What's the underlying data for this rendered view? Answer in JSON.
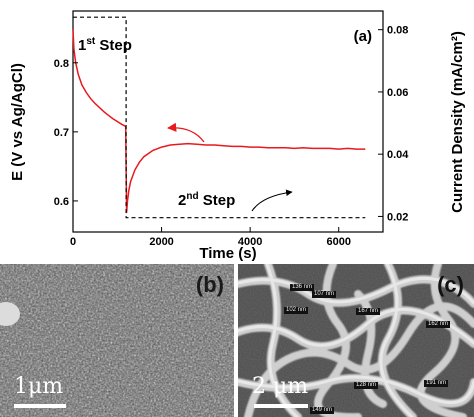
{
  "chart_data": {
    "type": "line",
    "panel_label": "(a)",
    "xlabel": "Time (s)",
    "ylabel_left": "E (V vs Ag/AgCl)",
    "ylabel_right": "Current Density (mA/cm²)",
    "xlim": [
      0,
      7000
    ],
    "ylim_left": [
      0.555,
      0.875
    ],
    "ylim_right": [
      0.015,
      0.086
    ],
    "xticks": [
      "0",
      "2000",
      "4000",
      "6000"
    ],
    "xtick_values": [
      0,
      2000,
      4000,
      6000
    ],
    "yticks_left": [
      "0.6",
      "0.7",
      "0.8"
    ],
    "ytick_values_left": [
      0.6,
      0.7,
      0.8
    ],
    "yticks_right": [
      "0.02",
      "0.04",
      "0.06",
      "0.08"
    ],
    "ytick_values_right": [
      0.02,
      0.04,
      0.06,
      0.08
    ],
    "series": [
      {
        "axis": "left",
        "color": "#e8191f",
        "style": "solid",
        "x": [
          0,
          20,
          60,
          120,
          200,
          300,
          400,
          500,
          600,
          700,
          800,
          900,
          1000,
          1100,
          1190,
          1200,
          1210,
          1230,
          1260,
          1300,
          1400,
          1500,
          1600,
          1800,
          2000,
          2200,
          2400,
          2600,
          2800,
          3000,
          3200,
          3400,
          3600,
          3800,
          4000,
          4200,
          4400,
          4600,
          4800,
          5000,
          5200,
          5400,
          5600,
          5800,
          6000,
          6200,
          6400,
          6600
        ],
        "y": [
          0.848,
          0.82,
          0.8,
          0.783,
          0.768,
          0.757,
          0.748,
          0.741,
          0.735,
          0.729,
          0.724,
          0.719,
          0.715,
          0.711,
          0.708,
          0.65,
          0.583,
          0.6,
          0.615,
          0.628,
          0.645,
          0.656,
          0.664,
          0.673,
          0.678,
          0.681,
          0.682,
          0.683,
          0.682,
          0.681,
          0.681,
          0.68,
          0.679,
          0.679,
          0.678,
          0.678,
          0.677,
          0.677,
          0.677,
          0.676,
          0.677,
          0.676,
          0.676,
          0.676,
          0.675,
          0.676,
          0.675,
          0.675
        ]
      },
      {
        "axis": "right",
        "color": "#000000",
        "style": "dashed",
        "x": [
          0,
          1200,
          1200,
          6600
        ],
        "y": [
          0.084,
          0.084,
          0.0196,
          0.0196
        ]
      }
    ],
    "annotations": {
      "step1": "1st Step",
      "step2": "2nd Step"
    }
  },
  "panels": {
    "b": {
      "label": "(b)",
      "scale": "1μm"
    },
    "c": {
      "label": "(c)",
      "scale": "2 μm",
      "measurements": [
        "136 nm",
        "107 nm",
        "102 nm",
        "167 nm",
        "162 nm",
        "128 nm",
        "149 nm",
        "191 nm"
      ]
    }
  }
}
